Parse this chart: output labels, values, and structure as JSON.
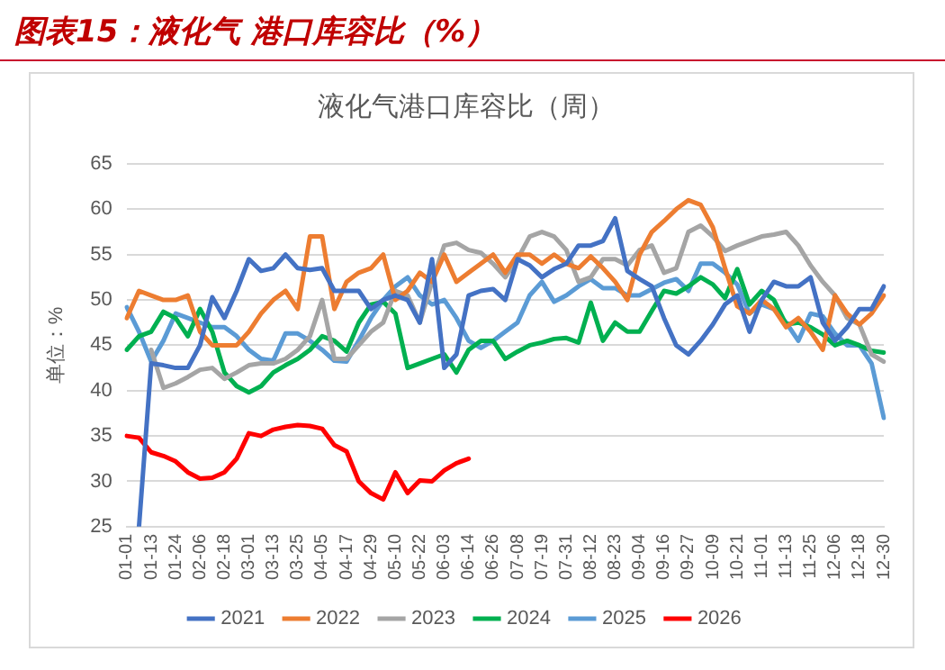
{
  "chart_data": {
    "type": "line",
    "title": "图表15：液化气 港口库容比（%）",
    "subtitle": "液化气港口库容比（周）",
    "ylabel": "单位：%",
    "categories": [
      "01-01",
      null,
      "01-13",
      null,
      "01-24",
      null,
      "02-06",
      null,
      "02-18",
      null,
      "03-01",
      null,
      "03-13",
      null,
      "03-25",
      null,
      "04-05",
      null,
      "04-17",
      null,
      "04-29",
      null,
      "05-10",
      null,
      "05-22",
      null,
      "06-03",
      null,
      "06-14",
      null,
      "06-26",
      null,
      "07-08",
      null,
      "07-19",
      null,
      "07-31",
      null,
      "08-12",
      null,
      "08-23",
      null,
      "09-04",
      null,
      "09-16",
      null,
      "09-27",
      null,
      "10-09",
      null,
      "10-21",
      null,
      "11-01",
      null,
      "11-13",
      null,
      "11-25",
      null,
      "12-06",
      null,
      "12-18",
      null,
      "12-30"
    ],
    "ylim": [
      25,
      65
    ],
    "yticks": [
      25,
      30,
      35,
      40,
      45,
      50,
      55,
      60,
      65
    ],
    "grid": "y",
    "legend": "bottom",
    "marker": "none",
    "line_style": "solid",
    "series": [
      {
        "name": "2021",
        "color": "#4472c4",
        "values": [
          null,
          25,
          43,
          42.8,
          42.5,
          42.5,
          45,
          50.3,
          48,
          51,
          54.5,
          53.2,
          53.5,
          55,
          53.5,
          53.3,
          53.5,
          51,
          51,
          51,
          49,
          50,
          50.5,
          50,
          47.5,
          54.5,
          42.5,
          44,
          50.5,
          51,
          51.2,
          50,
          54.5,
          53.8,
          52.5,
          53.4,
          54,
          56,
          56,
          56.5,
          59,
          53.2,
          52.3,
          51.5,
          48,
          45,
          44,
          45.5,
          47.3,
          49.5,
          50.5,
          46.5,
          50,
          52,
          51.5,
          51.5,
          52.5,
          47.5,
          45.5,
          47,
          49,
          49,
          51.5
        ]
      },
      {
        "name": "2022",
        "color": "#ed7d31",
        "values": [
          48,
          51,
          50.5,
          50,
          50,
          50.5,
          46.5,
          45,
          45,
          45,
          46.5,
          48.5,
          50,
          51,
          49,
          57,
          57,
          49,
          52,
          53,
          53.5,
          55,
          50,
          51,
          53,
          52,
          55,
          52,
          53,
          54,
          55,
          53,
          55,
          55,
          54,
          55,
          54,
          53.5,
          54.8,
          53.5,
          52,
          50,
          55,
          57.5,
          58.7,
          60,
          61,
          60.5,
          58,
          53.5,
          49.3,
          48.5,
          50,
          49,
          47,
          48,
          46.5,
          44.5,
          50.5,
          48.5,
          47.3,
          48.5,
          50.5
        ]
      },
      {
        "name": "2023",
        "color": "#a5a5a5",
        "values": [
          null,
          null,
          44.5,
          40.3,
          40.8,
          41.5,
          42.3,
          42.5,
          41.3,
          42,
          42.8,
          43,
          43,
          43.5,
          44.5,
          46,
          50,
          43.5,
          43.5,
          45,
          46.5,
          47.5,
          51,
          50.5,
          47.5,
          52,
          56,
          56.3,
          55.5,
          55.2,
          54,
          52.5,
          54.5,
          57,
          57.5,
          57,
          55.5,
          52,
          52.5,
          54.5,
          54.5,
          53.8,
          55.5,
          56,
          53,
          53.5,
          57.5,
          58.2,
          57,
          55.4,
          56,
          56.5,
          57,
          57.2,
          57.5,
          56,
          53.8,
          52,
          50.5,
          48,
          47.3,
          44,
          43.2
        ]
      },
      {
        "name": "2024",
        "color": "#00b050",
        "values": [
          44.5,
          46,
          46.5,
          48.7,
          48,
          46,
          49,
          46.5,
          42,
          40.5,
          39.8,
          40.5,
          42,
          42.8,
          43.5,
          44.5,
          46,
          45.5,
          44.3,
          47.5,
          49.5,
          49.8,
          48.5,
          42.5,
          43,
          43.5,
          44,
          42,
          44.5,
          45.5,
          45.5,
          43.5,
          44.3,
          45,
          45.3,
          45.7,
          45.8,
          45.3,
          49.7,
          45.5,
          47.5,
          46.5,
          46.5,
          48.8,
          51,
          50.7,
          51.5,
          52.5,
          51.7,
          50.2,
          53.4,
          49.5,
          51,
          50,
          47.3,
          47.5,
          47,
          46.2,
          45,
          45.5,
          45,
          44.4,
          44.2
        ]
      },
      {
        "name": "2025",
        "color": "#5b9bd5",
        "values": [
          49.2,
          46.5,
          43.2,
          45.5,
          48.5,
          48,
          47.5,
          47,
          47,
          46,
          44.5,
          43.5,
          43.3,
          46.3,
          46.3,
          45.5,
          44.5,
          43.3,
          43.2,
          45.5,
          48,
          50,
          51.5,
          52.5,
          50.5,
          49.5,
          50,
          48,
          45.5,
          44.7,
          45.5,
          46.5,
          47.5,
          50.5,
          52,
          49.8,
          50.5,
          51.5,
          52.3,
          51.3,
          51.3,
          50.5,
          50.5,
          51.2,
          51.9,
          52.3,
          51,
          54,
          54,
          53,
          51.7,
          48.5,
          49.5,
          49,
          47.5,
          45.5,
          48.5,
          48.2,
          46.3,
          45,
          45,
          43,
          37
        ]
      },
      {
        "name": "2026",
        "color": "#ff0000",
        "values": [
          35,
          34.8,
          33.2,
          32.8,
          32.2,
          31,
          30.3,
          30.4,
          31,
          32.5,
          35.3,
          35,
          35.7,
          36,
          36.2,
          36.1,
          35.8,
          34,
          33.3,
          30,
          28.7,
          28,
          31,
          28.7,
          30.1,
          30,
          31.2,
          32,
          32.5,
          null,
          null,
          null,
          null,
          null,
          null,
          null,
          null,
          null,
          null,
          null,
          null,
          null,
          null,
          null,
          null,
          null,
          null,
          null,
          null,
          null,
          null,
          null,
          null,
          null,
          null,
          null,
          null,
          null,
          null,
          null,
          null,
          null,
          null
        ]
      }
    ]
  }
}
